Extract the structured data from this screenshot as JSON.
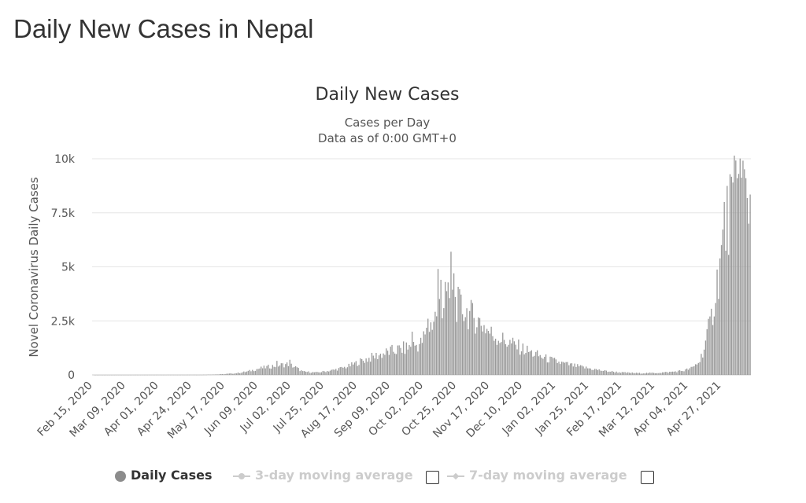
{
  "page": {
    "heading": "Daily New Cases in Nepal"
  },
  "colors": {
    "bars": "#9a9a9a",
    "grid": "#e6e6e6",
    "legend_inactive": "#cccccc"
  },
  "chart_data": {
    "type": "bar",
    "title": "Daily New Cases",
    "subtitle_lines": [
      "Cases per Day",
      "Data as of 0:00 GMT+0"
    ],
    "xlabel": "",
    "ylabel": "Novel Coronavirus Daily Cases",
    "ylim": [
      0,
      10000
    ],
    "yticks": [
      0,
      2500,
      5000,
      7500,
      10000
    ],
    "ytick_labels": [
      "0",
      "2.5k",
      "5k",
      "7.5k",
      "10k"
    ],
    "x_start": "2020-02-15",
    "x_end": "2021-05-17",
    "xtick_labels": [
      "Feb 15, 2020",
      "Mar 09, 2020",
      "Apr 01, 2020",
      "Apr 24, 2020",
      "May 17, 2020",
      "Jun 09, 2020",
      "Jul 02, 2020",
      "Jul 25, 2020",
      "Aug 17, 2020",
      "Sep 09, 2020",
      "Oct 02, 2020",
      "Oct 25, 2020",
      "Nov 17, 2020",
      "Dec 10, 2020",
      "Jan 02, 2021",
      "Jan 25, 2021",
      "Feb 17, 2021",
      "Mar 12, 2021",
      "Apr 04, 2021",
      "Apr 27, 2021"
    ],
    "grid": true,
    "legend_position": "bottom",
    "daily_series": [
      {
        "date": "2020-02-15",
        "value": 0
      },
      {
        "date": "2020-05-01",
        "value": 5
      },
      {
        "date": "2020-05-15",
        "value": 30
      },
      {
        "date": "2020-05-25",
        "value": 80
      },
      {
        "date": "2020-06-01",
        "value": 150
      },
      {
        "date": "2020-06-10",
        "value": 300
      },
      {
        "date": "2020-06-20",
        "value": 420
      },
      {
        "date": "2020-06-30",
        "value": 500
      },
      {
        "date": "2020-07-05",
        "value": 350
      },
      {
        "date": "2020-07-10",
        "value": 150
      },
      {
        "date": "2020-07-20",
        "value": 110
      },
      {
        "date": "2020-07-31",
        "value": 220
      },
      {
        "date": "2020-08-10",
        "value": 380
      },
      {
        "date": "2020-08-20",
        "value": 650
      },
      {
        "date": "2020-08-31",
        "value": 900
      },
      {
        "date": "2020-09-10",
        "value": 1100
      },
      {
        "date": "2020-09-20",
        "value": 1250
      },
      {
        "date": "2020-09-30",
        "value": 1450
      },
      {
        "date": "2020-10-07",
        "value": 2300
      },
      {
        "date": "2020-10-14",
        "value": 3300
      },
      {
        "date": "2020-10-21",
        "value": 3500
      },
      {
        "date": "2020-10-28",
        "value": 3100
      },
      {
        "date": "2020-11-04",
        "value": 2750
      },
      {
        "date": "2020-11-11",
        "value": 2400
      },
      {
        "date": "2020-11-18",
        "value": 1900
      },
      {
        "date": "2020-11-25",
        "value": 1650
      },
      {
        "date": "2020-12-05",
        "value": 1350
      },
      {
        "date": "2020-12-15",
        "value": 1050
      },
      {
        "date": "2020-12-25",
        "value": 780
      },
      {
        "date": "2021-01-05",
        "value": 560
      },
      {
        "date": "2021-01-15",
        "value": 420
      },
      {
        "date": "2021-01-25",
        "value": 300
      },
      {
        "date": "2021-02-05",
        "value": 180
      },
      {
        "date": "2021-02-17",
        "value": 110
      },
      {
        "date": "2021-03-01",
        "value": 80
      },
      {
        "date": "2021-03-12",
        "value": 90
      },
      {
        "date": "2021-03-22",
        "value": 130
      },
      {
        "date": "2021-04-01",
        "value": 200
      },
      {
        "date": "2021-04-07",
        "value": 330
      },
      {
        "date": "2021-04-12",
        "value": 650
      },
      {
        "date": "2021-04-16",
        "value": 1500
      },
      {
        "date": "2021-04-20",
        "value": 2600
      },
      {
        "date": "2021-04-24",
        "value": 4300
      },
      {
        "date": "2021-04-28",
        "value": 6000
      },
      {
        "date": "2021-05-02",
        "value": 7500
      },
      {
        "date": "2021-05-06",
        "value": 8600
      },
      {
        "date": "2021-05-10",
        "value": 9000
      },
      {
        "date": "2021-05-13",
        "value": 8600
      },
      {
        "date": "2021-05-17",
        "value": 8000
      }
    ],
    "spikes": [
      {
        "date": "2020-06-22",
        "value": 650
      },
      {
        "date": "2020-07-01",
        "value": 700
      },
      {
        "date": "2020-09-24",
        "value": 2000
      },
      {
        "date": "2020-10-05",
        "value": 2600
      },
      {
        "date": "2020-10-12",
        "value": 4900
      },
      {
        "date": "2020-10-14",
        "value": 4400
      },
      {
        "date": "2020-10-17",
        "value": 4300
      },
      {
        "date": "2020-10-21",
        "value": 5700
      },
      {
        "date": "2020-10-23",
        "value": 4700
      },
      {
        "date": "2021-04-29",
        "value": 8000
      },
      {
        "date": "2021-05-05",
        "value": 8900
      },
      {
        "date": "2021-05-08",
        "value": 9100
      },
      {
        "date": "2021-05-09",
        "value": 9300
      },
      {
        "date": "2021-05-14",
        "value": 9100
      }
    ],
    "legend": [
      {
        "label": "Daily Cases",
        "active": true
      },
      {
        "label": "3-day moving average",
        "active": false
      },
      {
        "label": "7-day moving average",
        "active": false
      }
    ]
  }
}
